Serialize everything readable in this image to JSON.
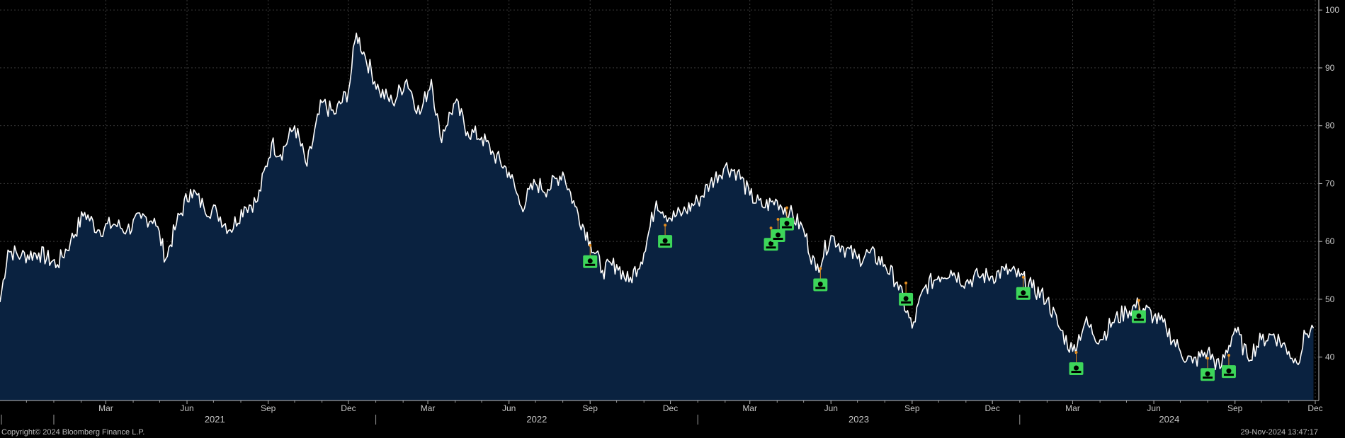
{
  "footer": {
    "copyright": "Copyright© 2024 Bloomberg Finance L.P.",
    "timestamp": "29-Nov-2024 13:47:17"
  },
  "colors": {
    "background": "#000000",
    "area_fill": "#0a2240",
    "line": "#ffffff",
    "grid": "#3a3a3a",
    "marker": "#3dd65a",
    "marker_dot": "#e08a1e"
  },
  "chart_data": {
    "type": "area",
    "title": "",
    "xlabel": "",
    "ylabel": "",
    "ylim": [
      32.5,
      101
    ],
    "y_ticks": [
      40,
      50,
      60,
      70,
      80,
      90,
      100
    ],
    "y_axis_side": "right",
    "grid": true,
    "x_range": [
      "2020-11-01",
      "2024-12-05"
    ],
    "month_ticks": [
      {
        "label": "Mar",
        "date": "2021-03-01"
      },
      {
        "label": "Jun",
        "date": "2021-06-01"
      },
      {
        "label": "Sep",
        "date": "2021-09-01"
      },
      {
        "label": "Dec",
        "date": "2021-12-01"
      },
      {
        "label": "Mar",
        "date": "2022-03-01"
      },
      {
        "label": "Jun",
        "date": "2022-06-01"
      },
      {
        "label": "Sep",
        "date": "2022-09-01"
      },
      {
        "label": "Dec",
        "date": "2022-12-01"
      },
      {
        "label": "Mar",
        "date": "2023-03-01"
      },
      {
        "label": "Jun",
        "date": "2023-06-01"
      },
      {
        "label": "Sep",
        "date": "2023-09-01"
      },
      {
        "label": "Dec",
        "date": "2023-12-01"
      },
      {
        "label": "Mar",
        "date": "2024-03-01"
      },
      {
        "label": "Jun",
        "date": "2024-06-01"
      },
      {
        "label": "Sep",
        "date": "2024-09-01"
      },
      {
        "label": "Dec",
        "date": "2024-12-01"
      }
    ],
    "year_ticks": [
      {
        "label": "2021",
        "start": "2021-01-01",
        "end": "2022-01-01"
      },
      {
        "label": "2022",
        "start": "2022-01-01",
        "end": "2023-01-01"
      },
      {
        "label": "2023",
        "start": "2023-01-01",
        "end": "2024-01-01"
      },
      {
        "label": "2024",
        "start": "2024-01-01",
        "end": "2024-12-05"
      }
    ],
    "series": [
      {
        "x": [
          "2020-11-01",
          "2020-11-10",
          "2020-11-25",
          "2020-12-15",
          "2021-01-05",
          "2021-01-20",
          "2021-02-05",
          "2021-02-20",
          "2021-03-10",
          "2021-03-25",
          "2021-04-10",
          "2021-04-25",
          "2021-05-08",
          "2021-05-20",
          "2021-06-05",
          "2021-06-20",
          "2021-07-05",
          "2021-07-20",
          "2021-08-05",
          "2021-08-20",
          "2021-09-05",
          "2021-09-15",
          "2021-10-01",
          "2021-10-15",
          "2021-11-01",
          "2021-11-15",
          "2021-12-01",
          "2021-12-10",
          "2021-12-20",
          "2022-01-05",
          "2022-01-20",
          "2022-02-05",
          "2022-02-20",
          "2022-03-05",
          "2022-03-15",
          "2022-04-01",
          "2022-04-15",
          "2022-05-01",
          "2022-05-15",
          "2022-06-01",
          "2022-06-15",
          "2022-07-01",
          "2022-07-15",
          "2022-08-01",
          "2022-08-15",
          "2022-09-01",
          "2022-09-15",
          "2022-10-01",
          "2022-10-15",
          "2022-11-01",
          "2022-11-15",
          "2022-12-01",
          "2022-12-15",
          "2023-01-01",
          "2023-01-15",
          "2023-02-01",
          "2023-02-15",
          "2023-03-01",
          "2023-03-15",
          "2023-04-01",
          "2023-04-15",
          "2023-05-01",
          "2023-05-15",
          "2023-06-01",
          "2023-06-15",
          "2023-07-01",
          "2023-07-15",
          "2023-08-01",
          "2023-08-15",
          "2023-09-01",
          "2023-09-15",
          "2023-10-01",
          "2023-10-15",
          "2023-11-01",
          "2023-11-15",
          "2023-12-01",
          "2023-12-15",
          "2024-01-01",
          "2024-01-15",
          "2024-02-01",
          "2024-02-15",
          "2024-03-01",
          "2024-03-15",
          "2024-04-01",
          "2024-04-15",
          "2024-05-01",
          "2024-05-15",
          "2024-06-01",
          "2024-06-15",
          "2024-07-01",
          "2024-07-15",
          "2024-08-01",
          "2024-08-15",
          "2024-09-01",
          "2024-09-15",
          "2024-10-01",
          "2024-10-15",
          "2024-11-01",
          "2024-11-10",
          "2024-11-20",
          "2024-11-29"
        ],
        "y": [
          49.5,
          58.5,
          57.5,
          58,
          56,
          60,
          65,
          62,
          63,
          62,
          64,
          64,
          57,
          63,
          69,
          66,
          65,
          62,
          66,
          67,
          77,
          75,
          80,
          73,
          84,
          82,
          86,
          96,
          92,
          86,
          84,
          88,
          82,
          88,
          78,
          84,
          79,
          78,
          75,
          72,
          66,
          70,
          69,
          72,
          66,
          60,
          55,
          56,
          53,
          58,
          67,
          64,
          65,
          67,
          70,
          73,
          72,
          68,
          66,
          67,
          65,
          62,
          55,
          61,
          59,
          57,
          58,
          56,
          53,
          45,
          52,
          54,
          55,
          53,
          54,
          54,
          55,
          54,
          52,
          50,
          45,
          41,
          46,
          43,
          46,
          48,
          49,
          47,
          45,
          41,
          39,
          41,
          38,
          45,
          40,
          43,
          44,
          41,
          39,
          44,
          45
        ]
      }
    ],
    "event_markers": [
      {
        "x": "2022-09-01",
        "y": 56.5
      },
      {
        "x": "2022-11-25",
        "y": 60
      },
      {
        "x": "2023-03-25",
        "y": 59.5
      },
      {
        "x": "2023-04-02",
        "y": 61
      },
      {
        "x": "2023-04-12",
        "y": 63
      },
      {
        "x": "2023-05-20",
        "y": 52.5
      },
      {
        "x": "2023-08-25",
        "y": 50
      },
      {
        "x": "2024-01-05",
        "y": 51
      },
      {
        "x": "2024-03-05",
        "y": 38
      },
      {
        "x": "2024-05-15",
        "y": 47
      },
      {
        "x": "2024-08-01",
        "y": 37
      },
      {
        "x": "2024-08-25",
        "y": 37.5
      }
    ]
  }
}
